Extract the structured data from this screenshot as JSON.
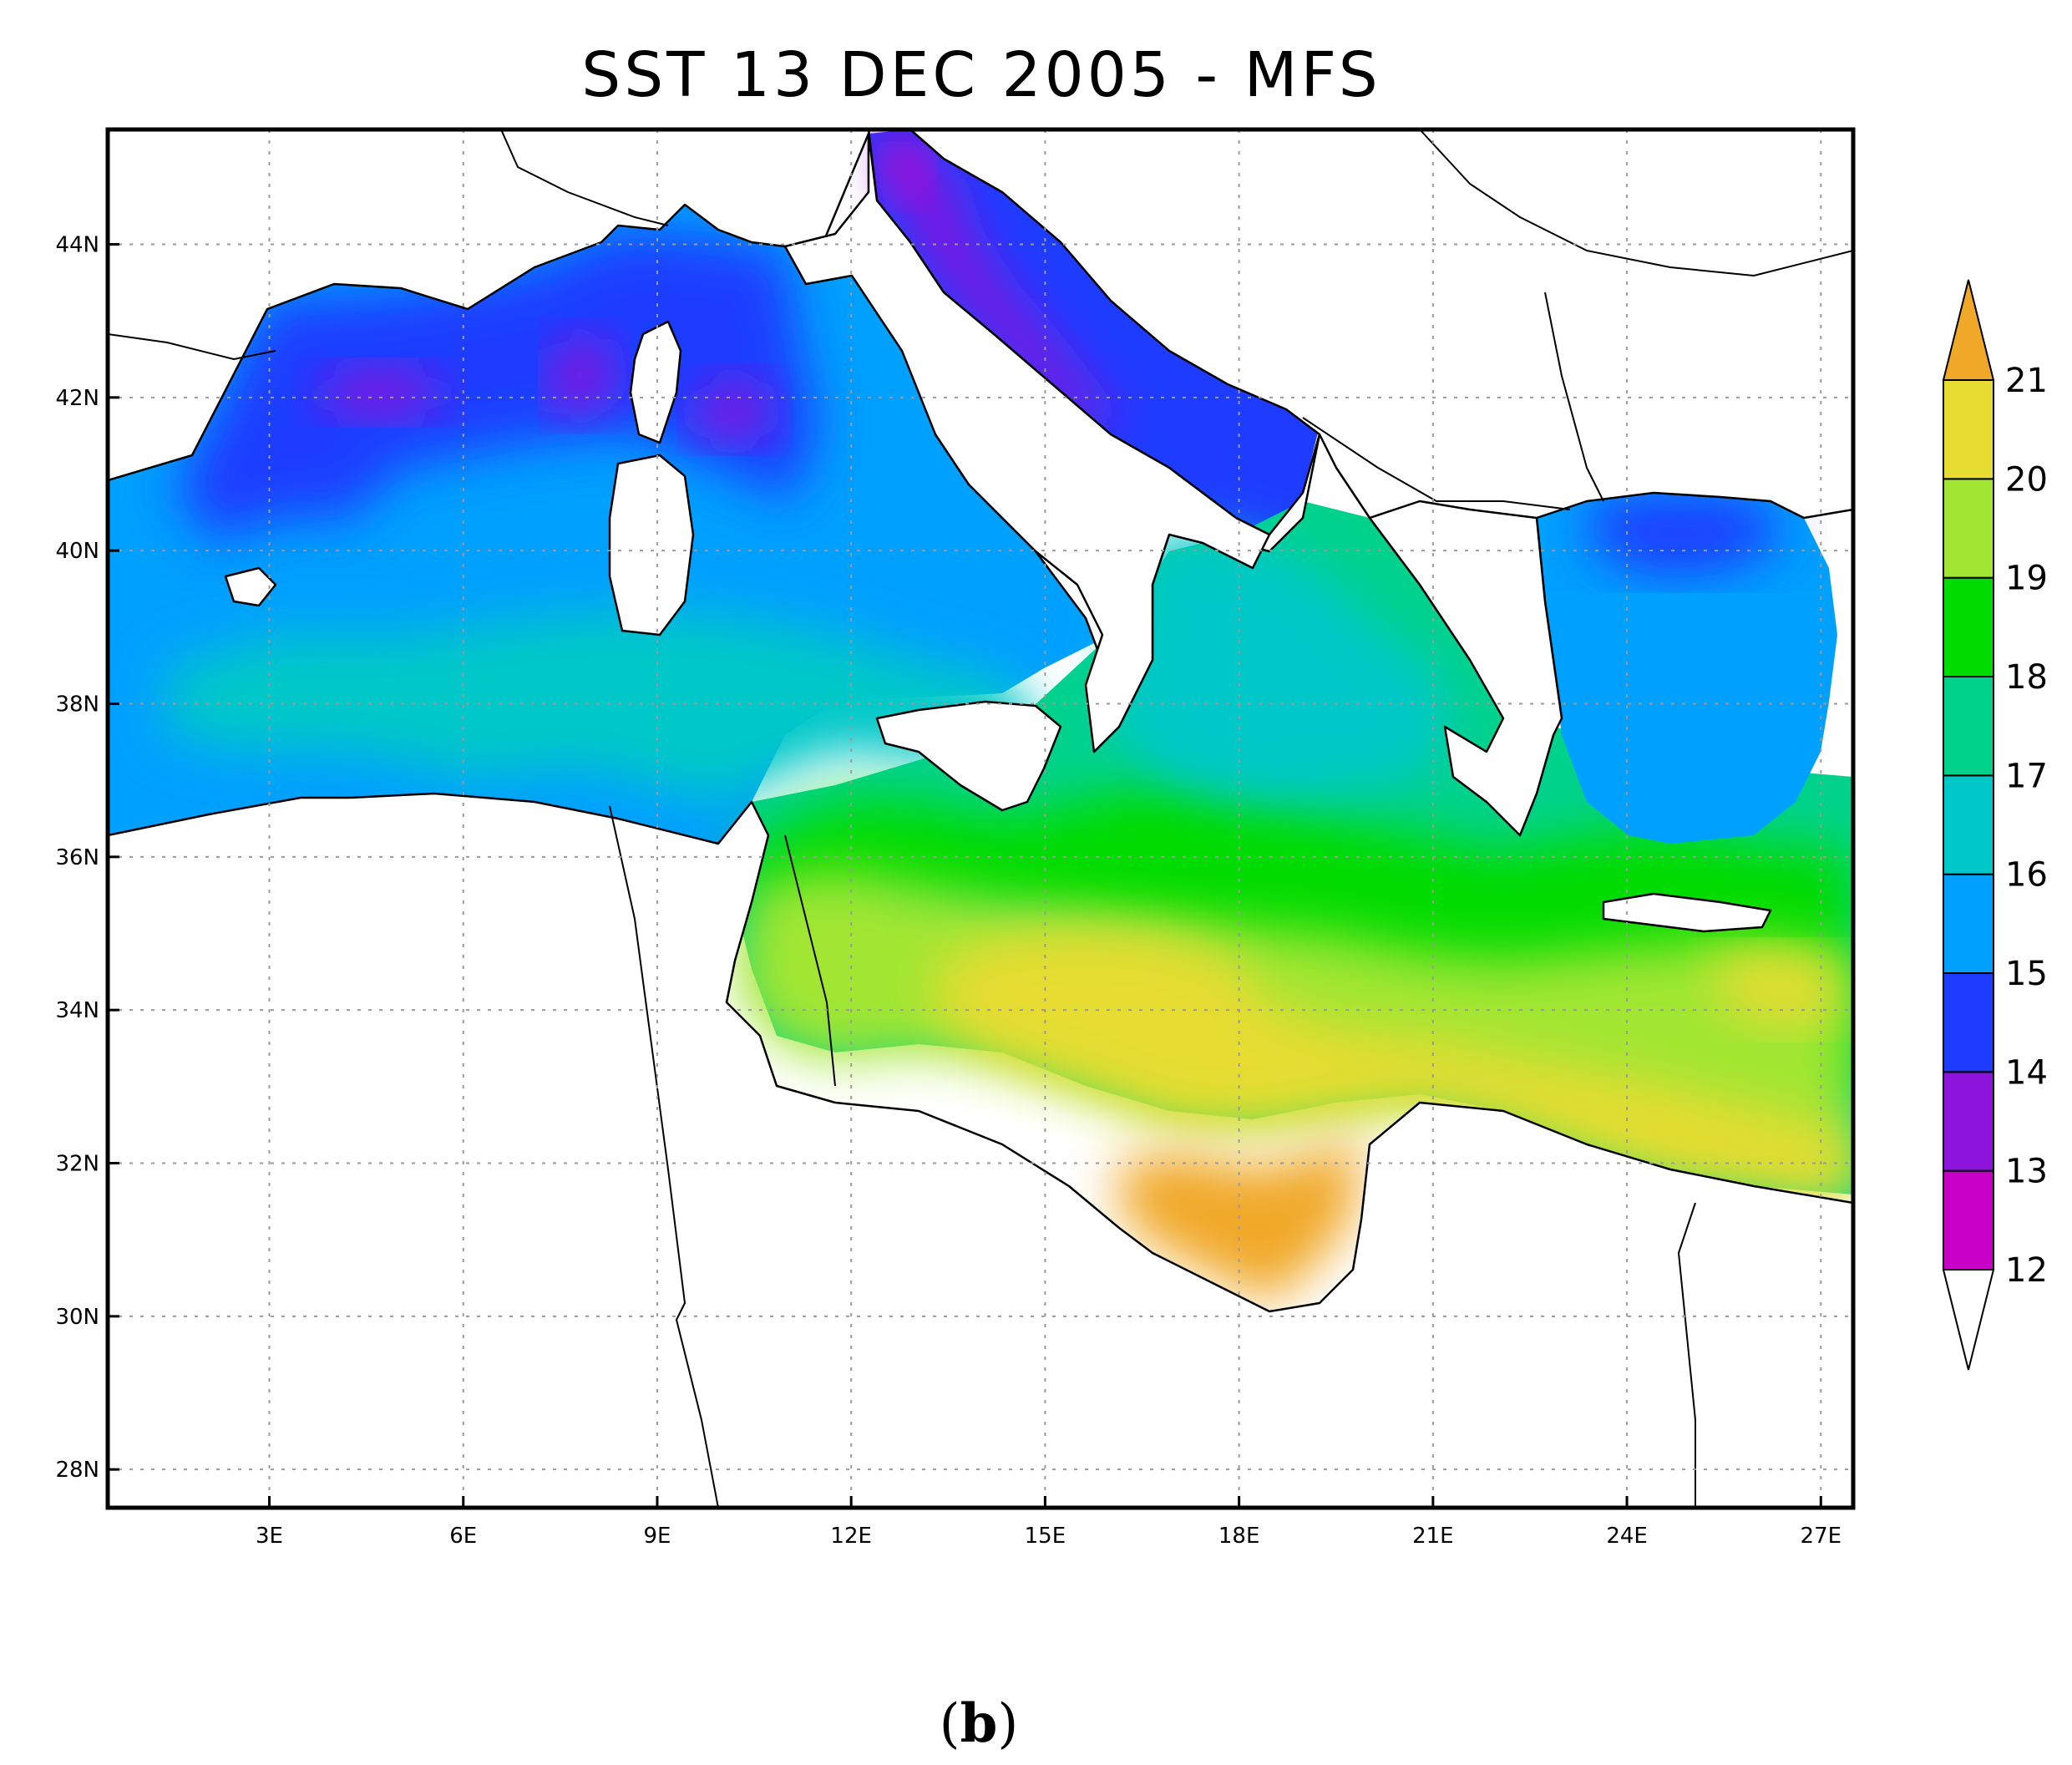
{
  "figure": {
    "title": "SST 13 DEC 2005 - MFS",
    "panel_label_paren_open": "(",
    "panel_label_letter": "b",
    "panel_label_paren_close": ")"
  },
  "map": {
    "projection": "lat-lon",
    "lon_range": [
      0.5,
      27.5
    ],
    "lat_range": [
      27.5,
      45.5
    ],
    "lat_ticks": [
      {
        "value": 28,
        "label": "28N"
      },
      {
        "value": 30,
        "label": "30N"
      },
      {
        "value": 32,
        "label": "32N"
      },
      {
        "value": 34,
        "label": "34N"
      },
      {
        "value": 36,
        "label": "36N"
      },
      {
        "value": 38,
        "label": "38N"
      },
      {
        "value": 40,
        "label": "40N"
      },
      {
        "value": 42,
        "label": "42N"
      },
      {
        "value": 44,
        "label": "44N"
      }
    ],
    "lon_ticks": [
      {
        "value": 3,
        "label": "3E"
      },
      {
        "value": 6,
        "label": "6E"
      },
      {
        "value": 9,
        "label": "9E"
      },
      {
        "value": 12,
        "label": "12E"
      },
      {
        "value": 15,
        "label": "15E"
      },
      {
        "value": 18,
        "label": "18E"
      },
      {
        "value": 21,
        "label": "21E"
      },
      {
        "value": 24,
        "label": "24E"
      },
      {
        "value": 27,
        "label": "27E"
      }
    ],
    "grid": true
  },
  "colorbar": {
    "orientation": "vertical",
    "placement": "right",
    "extend": "both",
    "over_color": "#f0a828",
    "under_color": "#ffffff",
    "bins": [
      {
        "from": 12,
        "to": 13,
        "color": "#c800c8"
      },
      {
        "from": 13,
        "to": 14,
        "color": "#8c14dc"
      },
      {
        "from": 14,
        "to": 15,
        "color": "#1e3cff"
      },
      {
        "from": 15,
        "to": 16,
        "color": "#00a0ff"
      },
      {
        "from": 16,
        "to": 17,
        "color": "#00c8c8"
      },
      {
        "from": 17,
        "to": 18,
        "color": "#00d28c"
      },
      {
        "from": 18,
        "to": 19,
        "color": "#00dc00"
      },
      {
        "from": 19,
        "to": 20,
        "color": "#a0e632"
      },
      {
        "from": 20,
        "to": 21,
        "color": "#e6dc32"
      }
    ],
    "labels": [
      "12",
      "13",
      "14",
      "15",
      "16",
      "17",
      "18",
      "19",
      "20",
      "21"
    ]
  }
}
